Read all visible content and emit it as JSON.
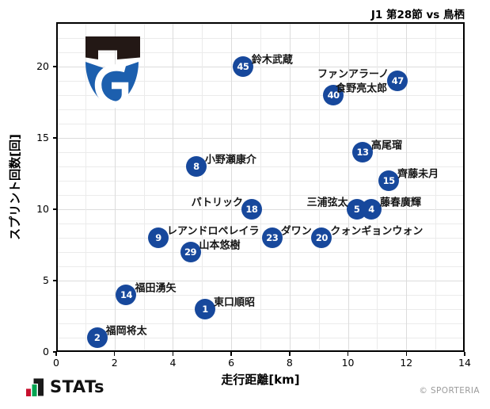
{
  "title": "J1 第28節 vs 鳥栖",
  "watermark": "© SPORTERIA",
  "brand": {
    "name": "STATs",
    "bar_colors": [
      "#c8102e",
      "#00a551",
      "#1a1a1a"
    ]
  },
  "team_logo": "gamba-osaka-crest",
  "logo_colors": {
    "dark": "#231815",
    "blue": "#1c5fae"
  },
  "chart_data": {
    "type": "scatter",
    "title": "J1 第28節 vs 鳥栖",
    "xlabel": "走行距離[km]",
    "ylabel": "スプリント回数[回]",
    "xlim": [
      0,
      14
    ],
    "ylim": [
      0,
      23
    ],
    "x_ticks": [
      0,
      2,
      4,
      6,
      8,
      10,
      12,
      14
    ],
    "y_ticks": [
      0,
      5,
      10,
      15,
      20
    ],
    "grid": "minor gridlines every 1 unit on both axes, light gray",
    "legend": "none",
    "marker_color": "#17489c",
    "marker_radius_px": 13,
    "points": [
      {
        "number": 45,
        "name": "鈴木武蔵",
        "x": 6.4,
        "y": 20,
        "label_side": "right"
      },
      {
        "number": 47,
        "name": "ファンアラーノ",
        "x": 11.7,
        "y": 19,
        "label_side": "left"
      },
      {
        "number": 40,
        "name": "食野亮太郎",
        "x": 9.5,
        "y": 18,
        "label_side": "right",
        "label_dx": 3
      },
      {
        "number": 13,
        "name": "高尾瑠",
        "x": 10.5,
        "y": 14,
        "label_side": "right"
      },
      {
        "number": 8,
        "name": "小野瀬康介",
        "x": 4.8,
        "y": 13,
        "label_side": "right"
      },
      {
        "number": 15,
        "name": "齊藤未月",
        "x": 11.4,
        "y": 12,
        "label_side": "right"
      },
      {
        "number": 18,
        "name": "パトリック",
        "x": 6.7,
        "y": 10,
        "label_side": "left"
      },
      {
        "number": 5,
        "name": "三浦弦太",
        "x": 10.3,
        "y": 10,
        "label_side": "left"
      },
      {
        "number": 4,
        "name": "藤春廣輝",
        "x": 10.8,
        "y": 10,
        "label_side": "right"
      },
      {
        "number": 9,
        "name": "レアンドロペレイラ",
        "x": 3.5,
        "y": 8,
        "label_side": "right"
      },
      {
        "number": 23,
        "name": "ダワン",
        "x": 7.4,
        "y": 8,
        "label_side": "right"
      },
      {
        "number": 20,
        "name": "クォンギョンウォン",
        "x": 9.1,
        "y": 8,
        "label_side": "right"
      },
      {
        "number": 29,
        "name": "山本悠樹",
        "x": 4.6,
        "y": 7,
        "label_side": "right"
      },
      {
        "number": 14,
        "name": "福田湧矢",
        "x": 2.4,
        "y": 4,
        "label_side": "right"
      },
      {
        "number": 1,
        "name": "東口順昭",
        "x": 5.1,
        "y": 3,
        "label_side": "right"
      },
      {
        "number": 2,
        "name": "福岡将太",
        "x": 1.4,
        "y": 1,
        "label_side": "right"
      }
    ]
  }
}
